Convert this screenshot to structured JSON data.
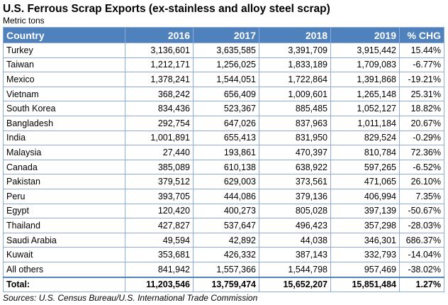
{
  "header": {
    "title": "U.S. Ferrous Scrap Exports (ex-stainless and alloy steel scrap)",
    "subtitle": "Metric tons"
  },
  "table": {
    "columns": [
      "Country",
      "2016",
      "2017",
      "2018",
      "2019",
      "% CHG"
    ],
    "rows": [
      [
        "Turkey",
        "3,136,601",
        "3,635,585",
        "3,391,709",
        "3,915,442",
        "15.44%"
      ],
      [
        "Taiwan",
        "1,212,171",
        "1,256,025",
        "1,833,189",
        "1,709,083",
        "-6.77%"
      ],
      [
        "Mexico",
        "1,378,241",
        "1,544,051",
        "1,722,864",
        "1,391,868",
        "-19.21%"
      ],
      [
        "Vietnam",
        "368,242",
        "656,409",
        "1,009,601",
        "1,265,148",
        "25.31%"
      ],
      [
        "South Korea",
        "834,436",
        "523,367",
        "885,485",
        "1,052,127",
        "18.82%"
      ],
      [
        "Bangladesh",
        "292,754",
        "647,026",
        "837,963",
        "1,011,184",
        "20.67%"
      ],
      [
        "India",
        "1,001,891",
        "655,413",
        "831,950",
        "829,524",
        "-0.29%"
      ],
      [
        "Malaysia",
        "27,440",
        "193,861",
        "470,397",
        "810,784",
        "72.36%"
      ],
      [
        "Canada",
        "385,089",
        "610,138",
        "638,922",
        "597,265",
        "-6.52%"
      ],
      [
        "Pakistan",
        "379,512",
        "629,003",
        "373,561",
        "471,065",
        "26.10%"
      ],
      [
        "Peru",
        "393,705",
        "444,086",
        "379,136",
        "406,994",
        "7.35%"
      ],
      [
        "Egypt",
        "120,420",
        "400,273",
        "805,028",
        "397,139",
        "-50.67%"
      ],
      [
        "Thailand",
        "427,827",
        "537,647",
        "496,423",
        "357,298",
        "-28.03%"
      ],
      [
        "Saudi Arabia",
        "49,594",
        "42,892",
        "44,038",
        "346,301",
        "686.37%"
      ],
      [
        "Kuwait",
        "353,681",
        "426,332",
        "387,143",
        "332,793",
        "-14.04%"
      ],
      [
        "All others",
        "841,942",
        "1,557,366",
        "1,544,798",
        "957,469",
        "-38.02%"
      ]
    ],
    "total": [
      "Total:",
      "11,203,546",
      "13,759,474",
      "15,652,207",
      "15,851,484",
      "1.27%"
    ]
  },
  "footer": {
    "source": "Sources: U.S. Census Bureau/U.S. International Trade Commission"
  }
}
